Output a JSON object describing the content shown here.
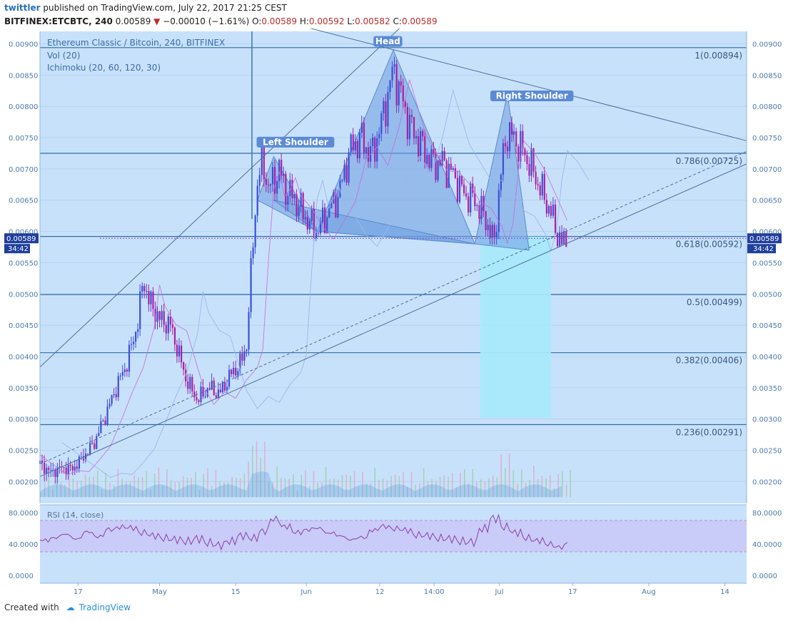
{
  "header": {
    "user": "twittler",
    "published": "published on TradingView.com, July 22, 2017 21:25 CEST",
    "symbol": "BITFINEX:ETCBTC, 240",
    "last": "0.00589",
    "change": "−0.00010 (−1.61%)",
    "open_label": "O:",
    "open": "0.00589",
    "high_label": "H:",
    "high": "0.00592",
    "low_label": "L:",
    "low": "0.00582",
    "close_label": "C:",
    "close": "0.00589"
  },
  "legend": {
    "title": "Ethereum Classic / Bitcoin, 240, BITFINEX",
    "volume": "Vol (20)",
    "ichimoku": "Ichimoku (20, 60, 120, 30)",
    "rsi": "RSI (14, close)"
  },
  "price_tag": {
    "value": "0.00589",
    "countdown": "34:42"
  },
  "footer": {
    "created_with": "Created with",
    "brand": "TradingView"
  },
  "colors": {
    "bg": "#c8e1fb",
    "pattern": "#6e9ee0",
    "projection": "#a6eafc",
    "candle_up": "#3b4fd8",
    "candle_down": "#b01f9d",
    "fib": "#2f6ea6",
    "rsi": "#8c3fa6",
    "rsi_band": "#c9c6f7"
  },
  "chart_data": {
    "type": "candlestick",
    "title": "Ethereum Classic / Bitcoin, 240, BITFINEX",
    "ylim": [
      0.00165,
      0.0092
    ],
    "y_ticks": [
      "0.00200",
      "0.00250",
      "0.00300",
      "0.00350",
      "0.00400",
      "0.00450",
      "0.00500",
      "0.00550",
      "0.00600",
      "0.00650",
      "0.00700",
      "0.00750",
      "0.00800",
      "0.00850",
      "0.00900"
    ],
    "x_ticks": [
      "17",
      "May",
      "15",
      "Jun",
      "12",
      "14:00",
      "Jul",
      "17",
      "Aug",
      "14"
    ],
    "fib_levels": [
      {
        "label": "1(0.00894)",
        "value": 0.00894
      },
      {
        "label": "0.786(0.00725)",
        "value": 0.00725
      },
      {
        "label": "0.618(0.00592)",
        "value": 0.00592
      },
      {
        "label": "0.5(0.00499)",
        "value": 0.00499
      },
      {
        "label": "0.382(0.00406)",
        "value": 0.00406
      },
      {
        "label": "0.236(0.00291)",
        "value": 0.00291
      }
    ],
    "annotations": [
      "Left Shoulder",
      "Head",
      "Right Shoulder"
    ],
    "price_path": [
      [
        0,
        0.00228
      ],
      [
        4,
        0.00215
      ],
      [
        8,
        0.00222
      ],
      [
        12,
        0.0022
      ],
      [
        16,
        0.0024
      ],
      [
        20,
        0.00262
      ],
      [
        24,
        0.00305
      ],
      [
        28,
        0.0035
      ],
      [
        32,
        0.0039
      ],
      [
        36,
        0.00455
      ],
      [
        38,
        0.00525
      ],
      [
        40,
        0.0049
      ],
      [
        44,
        0.0046
      ],
      [
        48,
        0.0045
      ],
      [
        50,
        0.0042
      ],
      [
        54,
        0.0036
      ],
      [
        58,
        0.0033
      ],
      [
        62,
        0.0035
      ],
      [
        66,
        0.0034
      ],
      [
        70,
        0.0037
      ],
      [
        74,
        0.0039
      ],
      [
        76,
        0.0042
      ],
      [
        78,
        0.0056
      ],
      [
        80,
        0.0068
      ],
      [
        82,
        0.0071
      ],
      [
        84,
        0.0067
      ],
      [
        86,
        0.0068
      ],
      [
        88,
        0.007
      ],
      [
        90,
        0.0067
      ],
      [
        94,
        0.0065
      ],
      [
        98,
        0.0062
      ],
      [
        102,
        0.006
      ],
      [
        106,
        0.0063
      ],
      [
        110,
        0.0066
      ],
      [
        114,
        0.0073
      ],
      [
        118,
        0.0075
      ],
      [
        122,
        0.0072
      ],
      [
        126,
        0.0078
      ],
      [
        130,
        0.0086
      ],
      [
        132,
        0.0083
      ],
      [
        136,
        0.0077
      ],
      [
        140,
        0.0074
      ],
      [
        144,
        0.0071
      ],
      [
        148,
        0.0071
      ],
      [
        152,
        0.0069
      ],
      [
        156,
        0.0066
      ],
      [
        160,
        0.0065
      ],
      [
        164,
        0.0062
      ],
      [
        167,
        0.0058
      ],
      [
        170,
        0.0071
      ],
      [
        172,
        0.0076
      ],
      [
        176,
        0.0074
      ],
      [
        180,
        0.0071
      ],
      [
        184,
        0.0067
      ],
      [
        188,
        0.0063
      ],
      [
        190,
        0.006
      ],
      [
        192,
        0.0058
      ],
      [
        194,
        0.00589
      ]
    ],
    "rsi": {
      "ylim": [
        -10,
        90
      ],
      "y_ticks": [
        "0.0000",
        "40.0000",
        "80.0000"
      ],
      "band": [
        30,
        70
      ],
      "values": [
        45,
        48,
        52,
        47,
        55,
        50,
        58,
        62,
        60,
        55,
        50,
        48,
        45,
        44,
        46,
        42,
        38,
        44,
        50,
        48,
        56,
        72,
        62,
        55,
        58,
        60,
        54,
        50,
        46,
        48,
        58,
        62,
        60,
        57,
        52,
        50,
        48,
        46,
        44,
        42,
        60,
        72,
        62,
        54,
        48,
        44,
        40,
        36,
        42
      ]
    }
  }
}
